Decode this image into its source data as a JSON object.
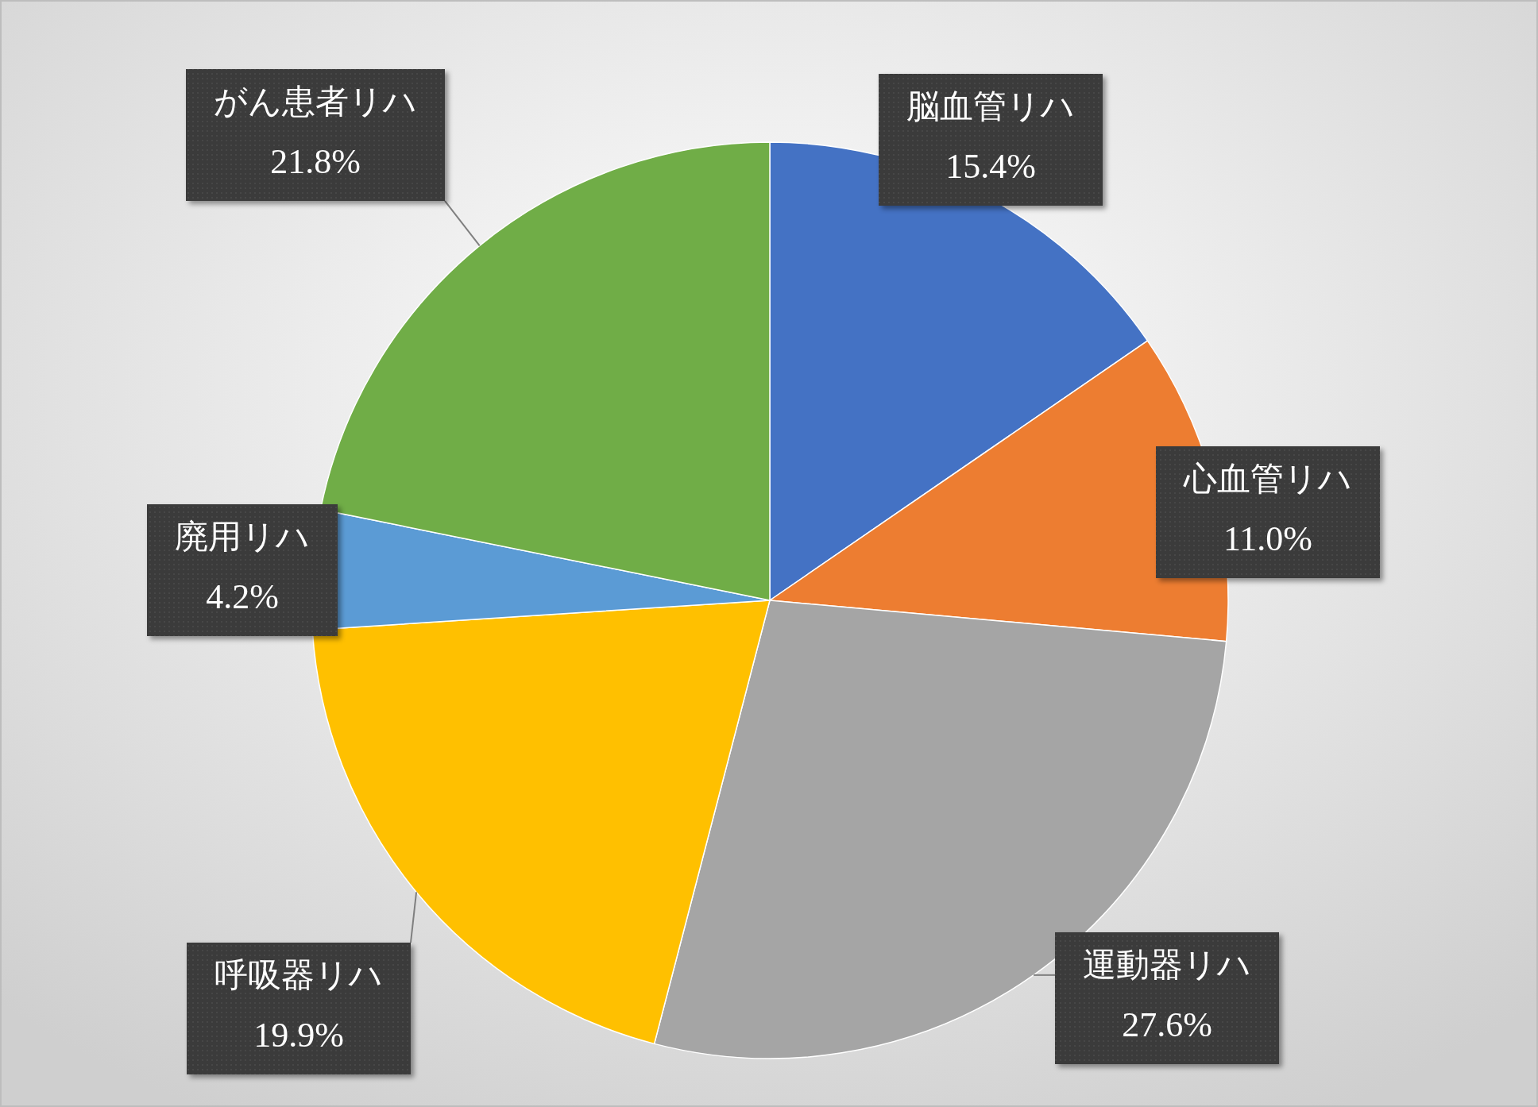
{
  "chart_data": {
    "type": "pie",
    "categories": [
      "脳血管リハ",
      "心血管リハ",
      "運動器リハ",
      "呼吸器リハ",
      "廃用リハ",
      "がん患者リハ"
    ],
    "values": [
      15.4,
      11.0,
      27.6,
      19.9,
      4.2,
      21.8
    ],
    "colors": [
      "#4472c4",
      "#ed7d31",
      "#a5a5a5",
      "#ffc000",
      "#5b9bd5",
      "#70ad47"
    ],
    "value_labels": [
      "15.4%",
      "11.0%",
      "27.6%",
      "19.9%",
      "4.2%",
      "21.8%"
    ]
  }
}
